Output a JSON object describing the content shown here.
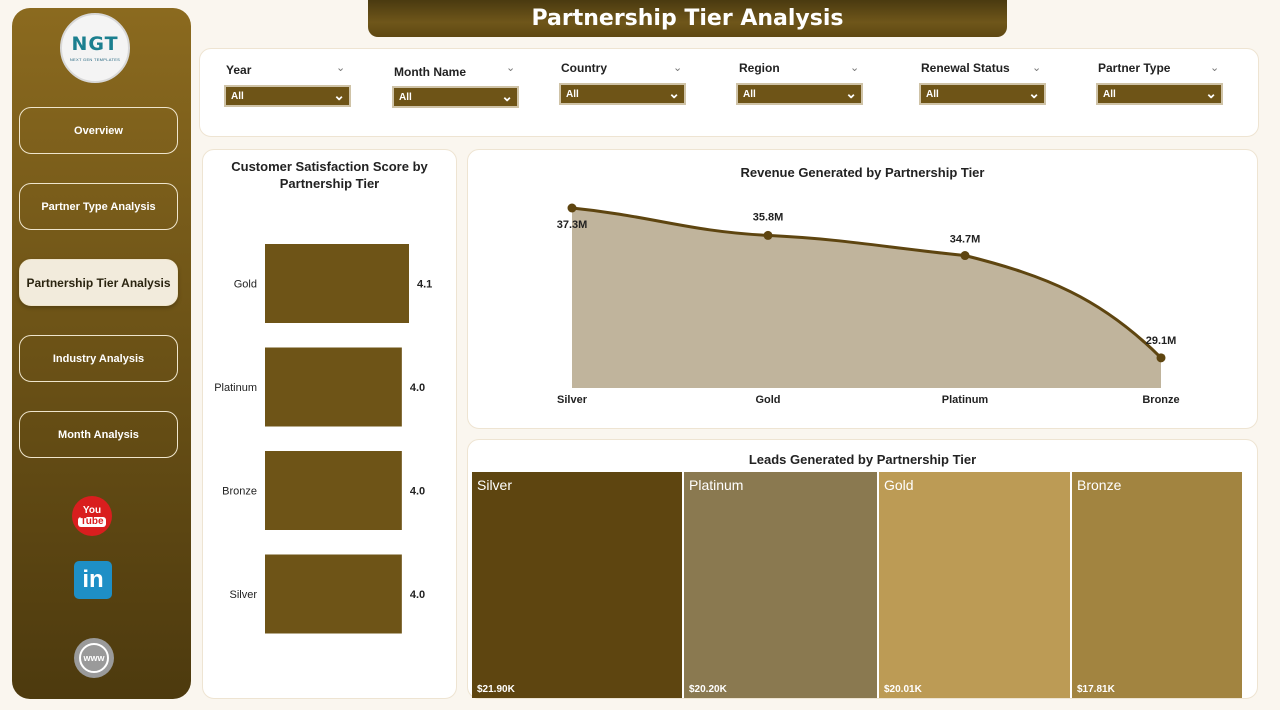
{
  "app": {
    "title": "Partnership Tier Analysis",
    "logo": {
      "mark": "NGT",
      "tagline": "NEXT GEN TEMPLATES"
    }
  },
  "nav": [
    {
      "label": "Overview",
      "active": false
    },
    {
      "label": "Partner Type Analysis",
      "active": false
    },
    {
      "label": "Partnership Tier Analysis",
      "active": true
    },
    {
      "label": "Industry Analysis",
      "active": false
    },
    {
      "label": "Month Analysis",
      "active": false
    }
  ],
  "social": {
    "youtube_top": "You",
    "youtube_bottom": "Tube",
    "linkedin": "in",
    "web": "www"
  },
  "filters": [
    {
      "label": "Year",
      "value": "All"
    },
    {
      "label": "Month Name",
      "value": "All"
    },
    {
      "label": "Country",
      "value": "All"
    },
    {
      "label": "Region",
      "value": "All"
    },
    {
      "label": "Renewal Status",
      "value": "All"
    },
    {
      "label": "Partner Type",
      "value": "All"
    }
  ],
  "colors": {
    "brand": "#6e5417",
    "brand_dark": "#4d3a0e",
    "area_fill": "#c0b49c",
    "line": "#5e4510"
  },
  "chart_data": [
    {
      "type": "bar",
      "orientation": "horizontal",
      "title": "Customer Satisfaction Score by Partnership Tier",
      "categories": [
        "Gold",
        "Platinum",
        "Bronze",
        "Silver"
      ],
      "values": [
        4.1,
        4.0,
        4.0,
        4.0
      ],
      "value_labels": [
        "4.1",
        "4.0",
        "4.0",
        "4.0"
      ],
      "color": "#6e5417"
    },
    {
      "type": "area",
      "title": "Revenue Generated by Partnership Tier",
      "categories": [
        "Silver",
        "Gold",
        "Platinum",
        "Bronze"
      ],
      "values": [
        37.3,
        35.8,
        34.7,
        29.1
      ],
      "value_labels": [
        "37.3M",
        "35.8M",
        "34.7M",
        "29.1M"
      ],
      "unit": "M"
    },
    {
      "type": "treemap",
      "title": "Leads Generated by Partnership Tier",
      "categories": [
        "Silver",
        "Platinum",
        "Gold",
        "Bronze"
      ],
      "values": [
        21.9,
        20.2,
        20.01,
        17.81
      ],
      "value_labels": [
        "$21.90K",
        "$20.20K",
        "$20.01K",
        "$17.81K"
      ],
      "colors": [
        "#5e4510",
        "#8a7950",
        "#bc9b55",
        "#a28440"
      ]
    }
  ]
}
